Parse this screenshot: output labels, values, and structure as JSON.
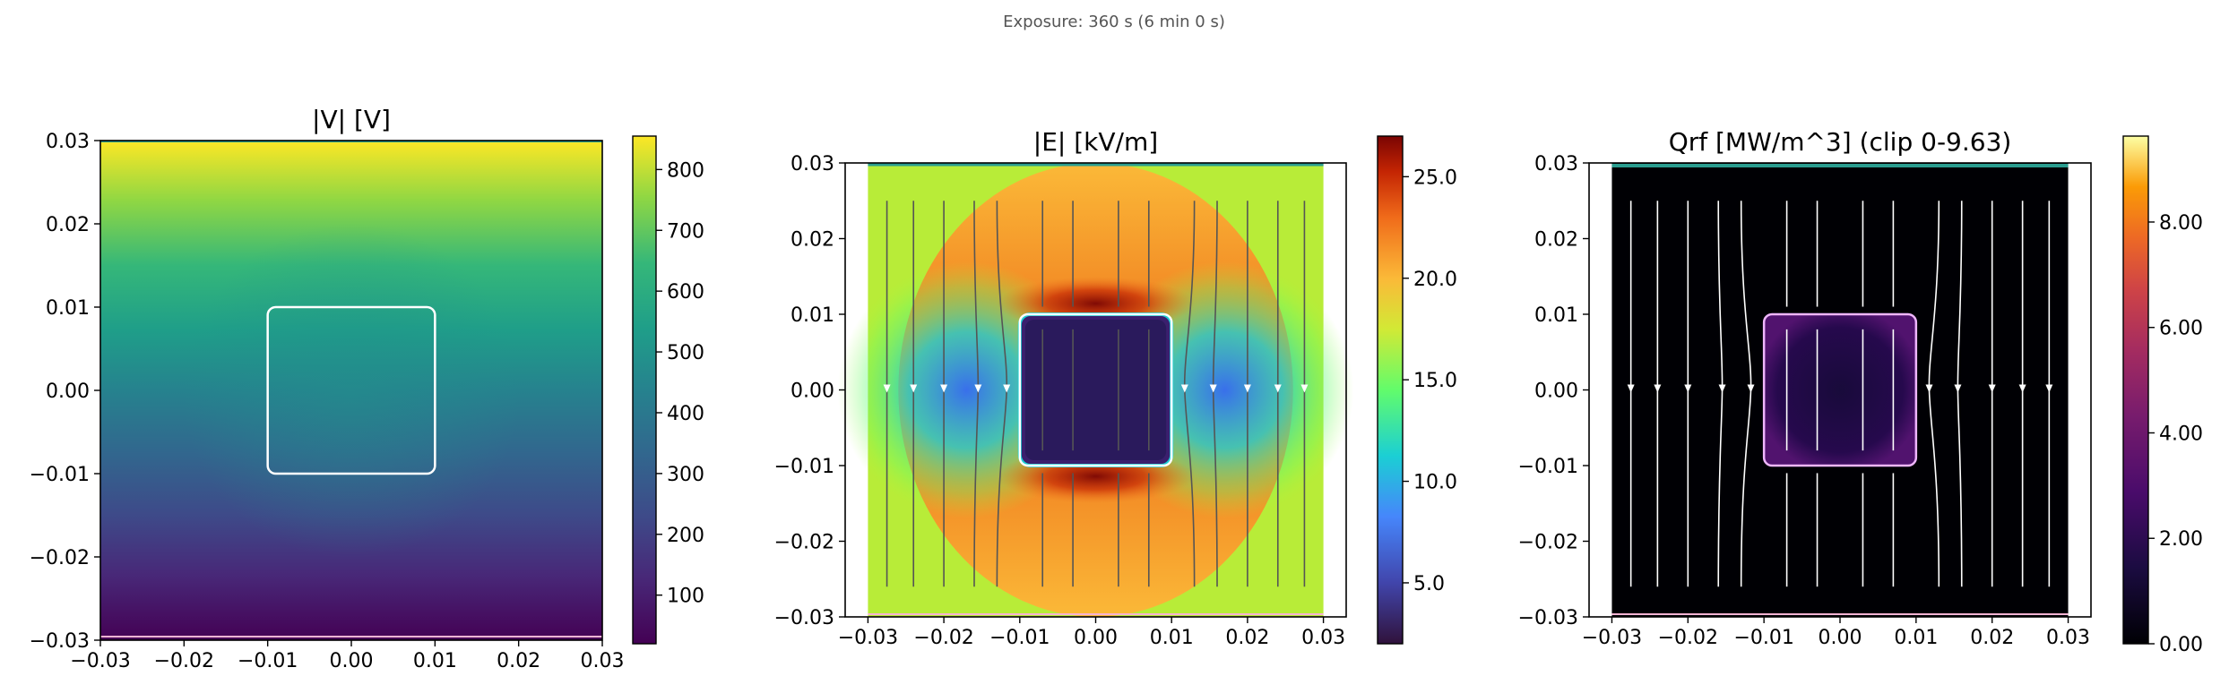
{
  "figure": {
    "suptitle": "Exposure: 360 s  (6 min 0 s)"
  },
  "chart_data": [
    {
      "type": "heatmap",
      "title": "|V| [V]",
      "xlim": [
        -0.03,
        0.03
      ],
      "ylim": [
        -0.03,
        0.03
      ],
      "xticks": [
        "−0.03",
        "−0.02",
        "−0.01",
        "0.00",
        "0.01",
        "0.02",
        "0.03"
      ],
      "yticks": [
        "−0.03",
        "−0.02",
        "−0.01",
        "0.00",
        "0.01",
        "0.02",
        "0.03"
      ],
      "colormap": "viridis",
      "colorbar": {
        "range": [
          20,
          855
        ],
        "ticks": [
          "100",
          "200",
          "300",
          "400",
          "500",
          "600",
          "700",
          "800"
        ]
      },
      "field": "potential increasing from bottom (~20 V) to top (~855 V)",
      "electrode_outline": {
        "x": [
          -0.01,
          0.01
        ],
        "y": [
          -0.01,
          0.01
        ]
      },
      "streamlines": false
    },
    {
      "type": "heatmap",
      "title": "|E| [kV/m]",
      "xlim": [
        -0.033,
        0.033
      ],
      "ylim": [
        -0.03,
        0.03
      ],
      "xticks": [
        "−0.03",
        "−0.02",
        "−0.01",
        "0.00",
        "0.01",
        "0.02",
        "0.03"
      ],
      "yticks": [
        "−0.03",
        "−0.02",
        "−0.01",
        "0.00",
        "0.01",
        "0.02",
        "0.03"
      ],
      "colormap": "turbo",
      "colorbar": {
        "range": [
          2,
          27
        ],
        "ticks": [
          "5.0",
          "10.0",
          "15.0",
          "20.0",
          "25.0"
        ]
      },
      "field": "field magnitude: low inside square, high above/below square",
      "electrode_outline": {
        "x": [
          -0.01,
          0.01
        ],
        "y": [
          -0.01,
          0.01
        ]
      },
      "streamlines": true
    },
    {
      "type": "heatmap",
      "title": "Qrf [MW/m^3] (clip 0-9.63)",
      "xlim": [
        -0.033,
        0.033
      ],
      "ylim": [
        -0.03,
        0.03
      ],
      "xticks": [
        "−0.03",
        "−0.02",
        "−0.01",
        "0.00",
        "0.01",
        "0.02",
        "0.03"
      ],
      "yticks": [
        "−0.03",
        "−0.02",
        "−0.01",
        "0.00",
        "0.01",
        "0.02",
        "0.03"
      ],
      "colormap": "inferno",
      "colorbar": {
        "range": [
          0,
          9.63
        ],
        "ticks": [
          "0.00",
          "2.00",
          "4.00",
          "6.00",
          "8.00"
        ]
      },
      "field": "mostly near zero; faint glow inside square",
      "electrode_outline": {
        "x": [
          -0.01,
          0.01
        ],
        "y": [
          -0.01,
          0.01
        ]
      },
      "streamlines": true
    }
  ],
  "colors": {
    "viridis": [
      "#440154",
      "#3b528b",
      "#21918c",
      "#5ec962",
      "#fde725"
    ],
    "turbo": [
      "#30123b",
      "#4686fb",
      "#1be5b5",
      "#a4fc3c",
      "#fbb938",
      "#e4460a",
      "#7a0403"
    ],
    "inferno": [
      "#000004",
      "#420a68",
      "#932667",
      "#dd513a",
      "#fca50a",
      "#fcffa4"
    ]
  }
}
